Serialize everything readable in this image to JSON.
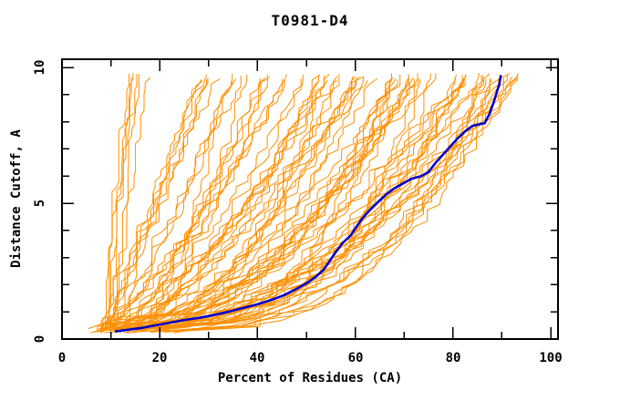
{
  "title": "T0981-D4",
  "chart_data": {
    "type": "line",
    "title": "T0981-D4",
    "xlabel": "Percent of Residues (CA)",
    "ylabel": "Distance Cutoff, A",
    "xlim": [
      0,
      101.5
    ],
    "ylim": [
      0,
      10.3
    ],
    "grid": false,
    "legend_position": "none",
    "x_major_ticks": [
      0,
      20,
      40,
      60,
      80,
      100
    ],
    "x_minor_ticks": [
      10,
      30,
      50,
      70,
      90
    ],
    "y_major_ticks": [
      0,
      5,
      10
    ],
    "y_minor_ticks": [
      1,
      2,
      3,
      4,
      6,
      7,
      8,
      9
    ],
    "x_tick_labels": [
      "0",
      "20",
      "40",
      "60",
      "80",
      "100"
    ],
    "y_tick_labels": [
      "0",
      "5",
      "10"
    ],
    "frame_color": "#000000",
    "series": [
      {
        "name": "highlighted-model",
        "color": "#0000cd",
        "width": 2.6,
        "points": [
          [
            10.8,
            0.28
          ],
          [
            13,
            0.33
          ],
          [
            16,
            0.4
          ],
          [
            19,
            0.5
          ],
          [
            22,
            0.6
          ],
          [
            25,
            0.7
          ],
          [
            28,
            0.78
          ],
          [
            31,
            0.88
          ],
          [
            34,
            1.0
          ],
          [
            37,
            1.14
          ],
          [
            40,
            1.28
          ],
          [
            43,
            1.45
          ],
          [
            45.5,
            1.62
          ],
          [
            48,
            1.85
          ],
          [
            50,
            2.05
          ],
          [
            52,
            2.3
          ],
          [
            53.5,
            2.55
          ],
          [
            54.5,
            2.8
          ],
          [
            56,
            3.2
          ],
          [
            57.5,
            3.55
          ],
          [
            59,
            3.8
          ],
          [
            60.5,
            4.2
          ],
          [
            61.5,
            4.45
          ],
          [
            63,
            4.75
          ],
          [
            65,
            5.1
          ],
          [
            66.5,
            5.35
          ],
          [
            68,
            5.55
          ],
          [
            70,
            5.75
          ],
          [
            71.5,
            5.9
          ],
          [
            73.5,
            6.0
          ],
          [
            75,
            6.15
          ],
          [
            76.5,
            6.5
          ],
          [
            78,
            6.8
          ],
          [
            79.5,
            7.1
          ],
          [
            81,
            7.4
          ],
          [
            82.5,
            7.65
          ],
          [
            84,
            7.85
          ],
          [
            86.5,
            7.95
          ],
          [
            87.5,
            8.3
          ],
          [
            88.3,
            8.7
          ],
          [
            89,
            9.1
          ],
          [
            89.5,
            9.4
          ],
          [
            89.8,
            9.72
          ]
        ]
      },
      {
        "name": "model-ensemble",
        "color": "#ff8f00",
        "width": 1,
        "style": "procedural-monotone-cumulative",
        "count": 83,
        "seed": 981404,
        "cutoff_start_range": [
          0.22,
          0.4
        ],
        "cutoff_end_range": [
          9.5,
          9.8
        ],
        "step_noise_percent": 2.2,
        "stall_probability": 0.18,
        "steps": 46,
        "clusters": [
          {
            "count": 6,
            "end_percent": [
              13,
              19
            ],
            "start_percent": [
              7,
              11
            ],
            "shape": [
              1.0,
              1.6
            ]
          },
          {
            "count": 6,
            "end_percent": [
              24,
              32
            ],
            "start_percent": [
              7,
              14
            ],
            "shape": [
              0.7,
              1.2
            ]
          },
          {
            "count": 13,
            "end_percent": [
              33,
              50
            ],
            "start_percent": [
              6,
              16
            ],
            "shape": [
              0.55,
              1.0
            ]
          },
          {
            "count": 18,
            "end_percent": [
              50,
              66
            ],
            "start_percent": [
              5,
              18
            ],
            "shape": [
              0.45,
              0.8
            ]
          },
          {
            "count": 32,
            "end_percent": [
              66,
              89
            ],
            "start_percent": [
              6,
              22
            ],
            "shape": [
              0.28,
              0.65
            ]
          },
          {
            "count": 8,
            "end_percent": [
              89,
              96
            ],
            "start_percent": [
              10,
              24
            ],
            "shape": [
              0.35,
              0.6
            ]
          }
        ]
      }
    ]
  },
  "colors": {
    "background": "#ffffff",
    "axis": "#000000",
    "ensemble": "#ff8f00",
    "highlight": "#0000cd"
  }
}
